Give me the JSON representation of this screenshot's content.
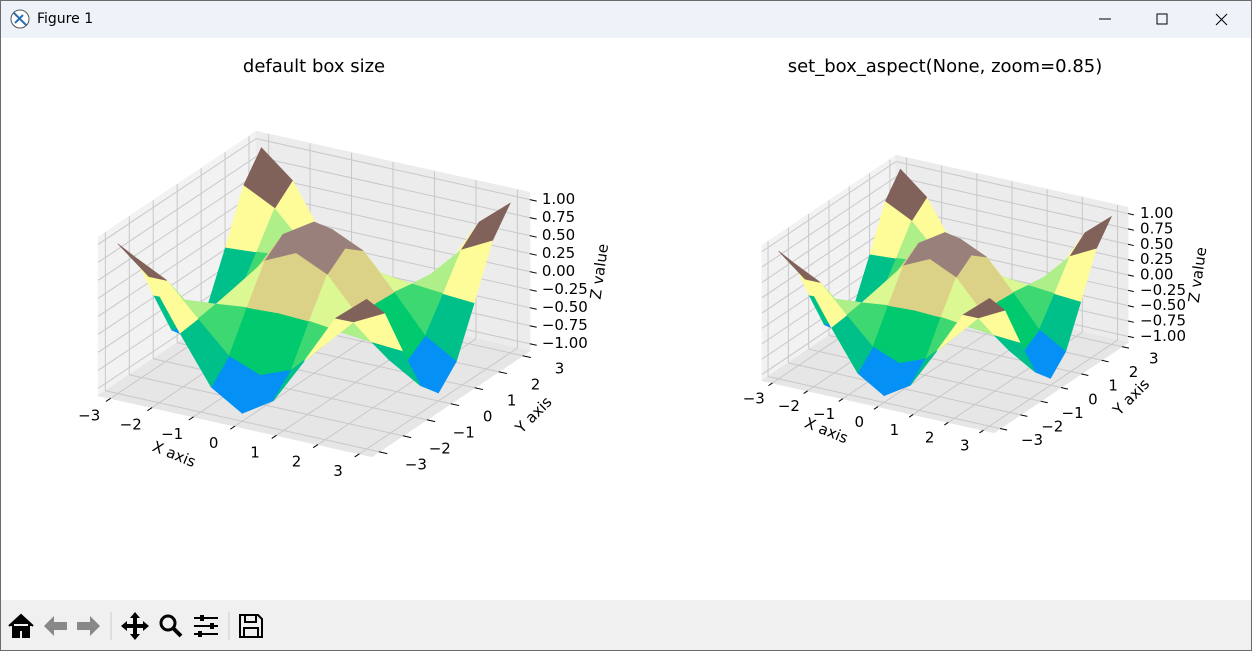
{
  "window": {
    "title": "Figure 1"
  },
  "chart_data": [
    {
      "type": "surface",
      "title": "default box size",
      "x": [
        -3,
        -2.25,
        -1.5,
        -0.75,
        0,
        0.75,
        1.5,
        2.25,
        3
      ],
      "y": [
        -3,
        -2.25,
        -1.5,
        -0.75,
        0,
        0.75,
        1.5,
        2.25,
        3
      ],
      "z": [
        [
          0.98,
          0.62,
          -0.07,
          -0.72,
          -0.99,
          -0.72,
          -0.07,
          0.62,
          0.98
        ],
        [
          0.62,
          0.4,
          -0.04,
          -0.46,
          -0.63,
          -0.46,
          -0.04,
          0.4,
          0.62
        ],
        [
          -0.07,
          -0.04,
          0.0,
          0.05,
          0.07,
          0.05,
          0.0,
          -0.04,
          -0.07
        ],
        [
          -0.72,
          -0.46,
          0.05,
          0.53,
          0.73,
          0.53,
          0.05,
          -0.46,
          -0.72
        ],
        [
          -0.99,
          -0.63,
          0.07,
          0.73,
          1.0,
          0.73,
          0.07,
          -0.63,
          -0.99
        ],
        [
          -0.72,
          -0.46,
          0.05,
          0.53,
          0.73,
          0.53,
          0.05,
          -0.46,
          -0.72
        ],
        [
          -0.07,
          -0.04,
          0.0,
          0.05,
          0.07,
          0.05,
          0.0,
          -0.04,
          -0.07
        ],
        [
          0.62,
          0.4,
          -0.04,
          -0.46,
          -0.63,
          -0.46,
          -0.04,
          0.4,
          0.62
        ],
        [
          0.98,
          0.62,
          -0.07,
          -0.72,
          -0.99,
          -0.72,
          -0.07,
          0.62,
          0.98
        ]
      ],
      "xlim": [
        -3.3,
        3.3
      ],
      "ylim": [
        -3.3,
        3.3
      ],
      "zlim": [
        -1.1,
        1.1
      ],
      "xticks": [
        {
          "value": -3,
          "label": "−3"
        },
        {
          "value": -2,
          "label": "−2"
        },
        {
          "value": -1,
          "label": "−1"
        },
        0,
        1,
        2,
        3
      ],
      "yticks": [
        {
          "value": -3,
          "label": "−3"
        },
        {
          "value": -2,
          "label": "−2"
        },
        {
          "value": -1,
          "label": "−1"
        },
        0,
        1,
        2,
        3
      ],
      "zticks": [
        {
          "value": -1,
          "label": "−1.00"
        },
        {
          "value": -0.75,
          "label": "−0.75"
        },
        {
          "value": -0.5,
          "label": "−0.50"
        },
        {
          "value": -0.25,
          "label": "−0.25"
        },
        {
          "value": 0,
          "label": "0.00"
        },
        {
          "value": 0.25,
          "label": "0.25"
        },
        {
          "value": 0.5,
          "label": "0.50"
        },
        {
          "value": 0.75,
          "label": "0.75"
        },
        {
          "value": 1,
          "label": "1.00"
        }
      ],
      "xlabel": "X axis",
      "ylabel": "Y axis",
      "zlabel": "Z value",
      "grid": true,
      "colormap": [
        "#333399",
        "#0099ff",
        "#00cc66",
        "#ffff99",
        "#80605a",
        "#ffffff"
      ]
    },
    {
      "type": "surface",
      "title": "set_box_aspect(None, zoom=0.85)",
      "x": [
        -3,
        -2.25,
        -1.5,
        -0.75,
        0,
        0.75,
        1.5,
        2.25,
        3
      ],
      "y": [
        -3,
        -2.25,
        -1.5,
        -0.75,
        0,
        0.75,
        1.5,
        2.25,
        3
      ],
      "z": [
        [
          0.98,
          0.62,
          -0.07,
          -0.72,
          -0.99,
          -0.72,
          -0.07,
          0.62,
          0.98
        ],
        [
          0.62,
          0.4,
          -0.04,
          -0.46,
          -0.63,
          -0.46,
          -0.04,
          0.4,
          0.62
        ],
        [
          -0.07,
          -0.04,
          0.0,
          0.05,
          0.07,
          0.05,
          0.0,
          -0.04,
          -0.07
        ],
        [
          -0.72,
          -0.46,
          0.05,
          0.53,
          0.73,
          0.53,
          0.05,
          -0.46,
          -0.72
        ],
        [
          -0.99,
          -0.63,
          0.07,
          0.73,
          1.0,
          0.73,
          0.07,
          -0.63,
          -0.99
        ],
        [
          -0.72,
          -0.46,
          0.05,
          0.53,
          0.73,
          0.53,
          0.05,
          -0.46,
          -0.72
        ],
        [
          -0.07,
          -0.04,
          0.0,
          0.05,
          0.07,
          0.05,
          0.0,
          -0.04,
          -0.07
        ],
        [
          0.62,
          0.4,
          -0.04,
          -0.46,
          -0.63,
          -0.46,
          -0.04,
          0.4,
          0.62
        ],
        [
          0.98,
          0.62,
          -0.07,
          -0.72,
          -0.99,
          -0.72,
          -0.07,
          0.62,
          0.98
        ]
      ],
      "xlim": [
        -3.3,
        3.3
      ],
      "ylim": [
        -3.3,
        3.3
      ],
      "zlim": [
        -1.1,
        1.1
      ],
      "xticks": [
        {
          "value": -3,
          "label": "−3"
        },
        {
          "value": -2,
          "label": "−2"
        },
        {
          "value": -1,
          "label": "−1"
        },
        0,
        1,
        2,
        3
      ],
      "yticks": [
        {
          "value": -3,
          "label": "−3"
        },
        {
          "value": -2,
          "label": "−2"
        },
        {
          "value": -1,
          "label": "−1"
        },
        0,
        1,
        2,
        3
      ],
      "zticks": [
        {
          "value": -1,
          "label": "−1.00"
        },
        {
          "value": -0.75,
          "label": "−0.75"
        },
        {
          "value": -0.5,
          "label": "−0.50"
        },
        {
          "value": -0.25,
          "label": "−0.25"
        },
        {
          "value": 0,
          "label": "0.00"
        },
        {
          "value": 0.25,
          "label": "0.25"
        },
        {
          "value": 0.5,
          "label": "0.50"
        },
        {
          "value": 0.75,
          "label": "0.75"
        },
        {
          "value": 1,
          "label": "1.00"
        }
      ],
      "xlabel": "X axis",
      "ylabel": "Y axis",
      "zlabel": "Z value",
      "grid": true,
      "colormap": [
        "#333399",
        "#0099ff",
        "#00cc66",
        "#ffff99",
        "#80605a",
        "#ffffff"
      ]
    }
  ]
}
